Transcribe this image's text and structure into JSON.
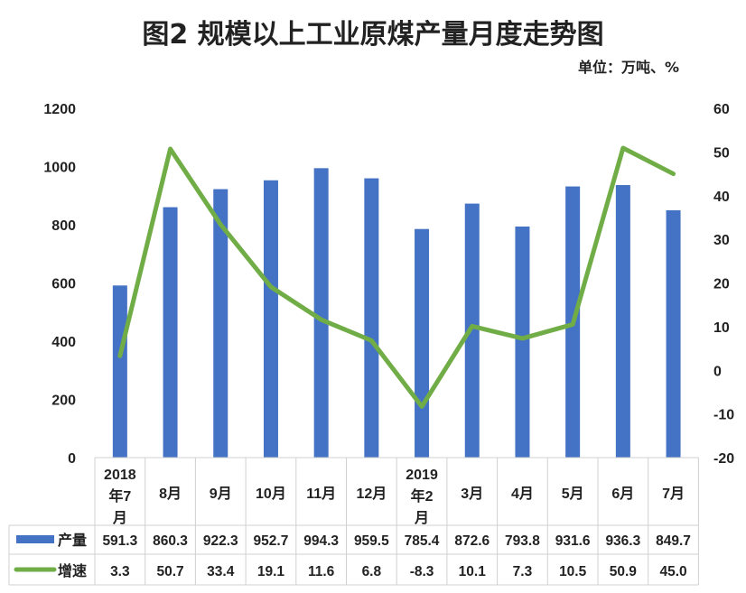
{
  "chart_data": {
    "type": "bar+line",
    "title": "图2 规模以上工业原煤产量月度走势图",
    "unit_label": "单位：万吨、%",
    "categories": [
      "2018年7月",
      "8月",
      "9月",
      "10月",
      "11月",
      "12月",
      "2019年2月",
      "3月",
      "4月",
      "5月",
      "6月",
      "7月"
    ],
    "category_lines": [
      [
        "2018",
        "年7",
        "月"
      ],
      [
        "8月"
      ],
      [
        "9月"
      ],
      [
        "10月"
      ],
      [
        "11月"
      ],
      [
        "12月"
      ],
      [
        "2019",
        "年2",
        "月"
      ],
      [
        "3月"
      ],
      [
        "4月"
      ],
      [
        "5月"
      ],
      [
        "6月"
      ],
      [
        "7月"
      ]
    ],
    "series": [
      {
        "name": "产量",
        "type": "bar",
        "axis": "left",
        "color": "#4472C4",
        "values": [
          591.3,
          860.3,
          922.3,
          952.7,
          994.3,
          959.5,
          785.4,
          872.6,
          793.8,
          931.6,
          936.3,
          849.7
        ]
      },
      {
        "name": "增速",
        "type": "line",
        "axis": "right",
        "color": "#70AD47",
        "values": [
          3.3,
          50.7,
          33.4,
          19.1,
          11.6,
          6.8,
          -8.3,
          10.1,
          7.3,
          10.5,
          50.9,
          45.0
        ]
      }
    ],
    "left_axis": {
      "range": [
        0,
        1200
      ],
      "ticks": [
        0,
        200,
        400,
        600,
        800,
        1000,
        1200
      ]
    },
    "right_axis": {
      "range": [
        -20,
        60
      ],
      "ticks": [
        -20,
        -10,
        0,
        10,
        20,
        30,
        40,
        50,
        60
      ]
    },
    "grid": false,
    "legend": "data-table"
  }
}
